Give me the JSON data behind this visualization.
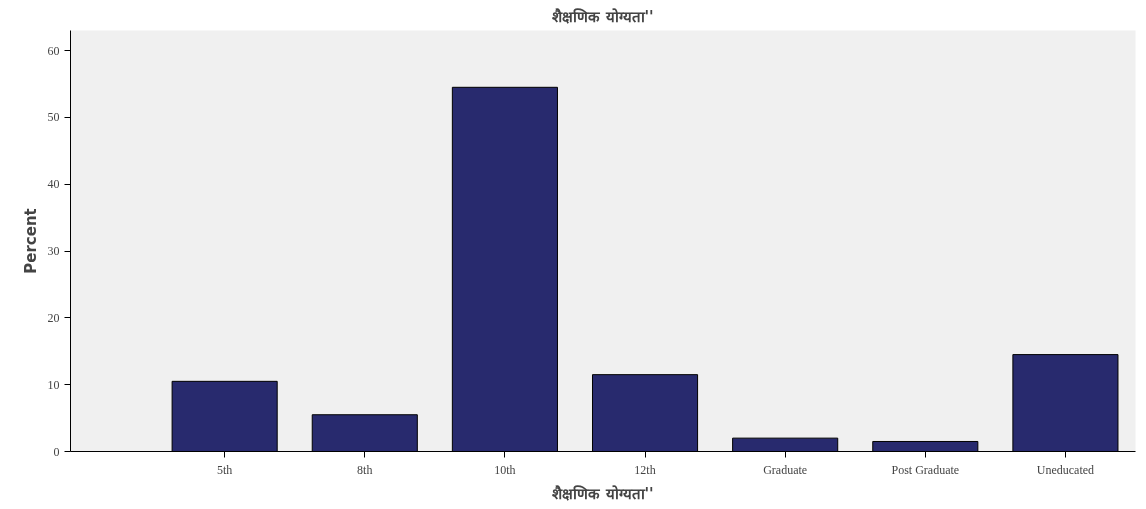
{
  "chart_data": {
    "type": "bar",
    "title": "शैक्षणिक योग्यता''",
    "xlabel": "शैक्षणिक योग्यता''",
    "ylabel": "Percent",
    "categories": [
      "5th",
      "8th",
      "10th",
      "12th",
      "Graduate",
      "Post Graduate",
      "Uneducated"
    ],
    "values": [
      10.5,
      5.5,
      54.5,
      11.5,
      2,
      1.5,
      14.5
    ],
    "color": "#282a6e",
    "ylim": [
      0,
      63
    ],
    "yticks": [
      0,
      10,
      20,
      30,
      40,
      50,
      60
    ],
    "grid": false
  }
}
